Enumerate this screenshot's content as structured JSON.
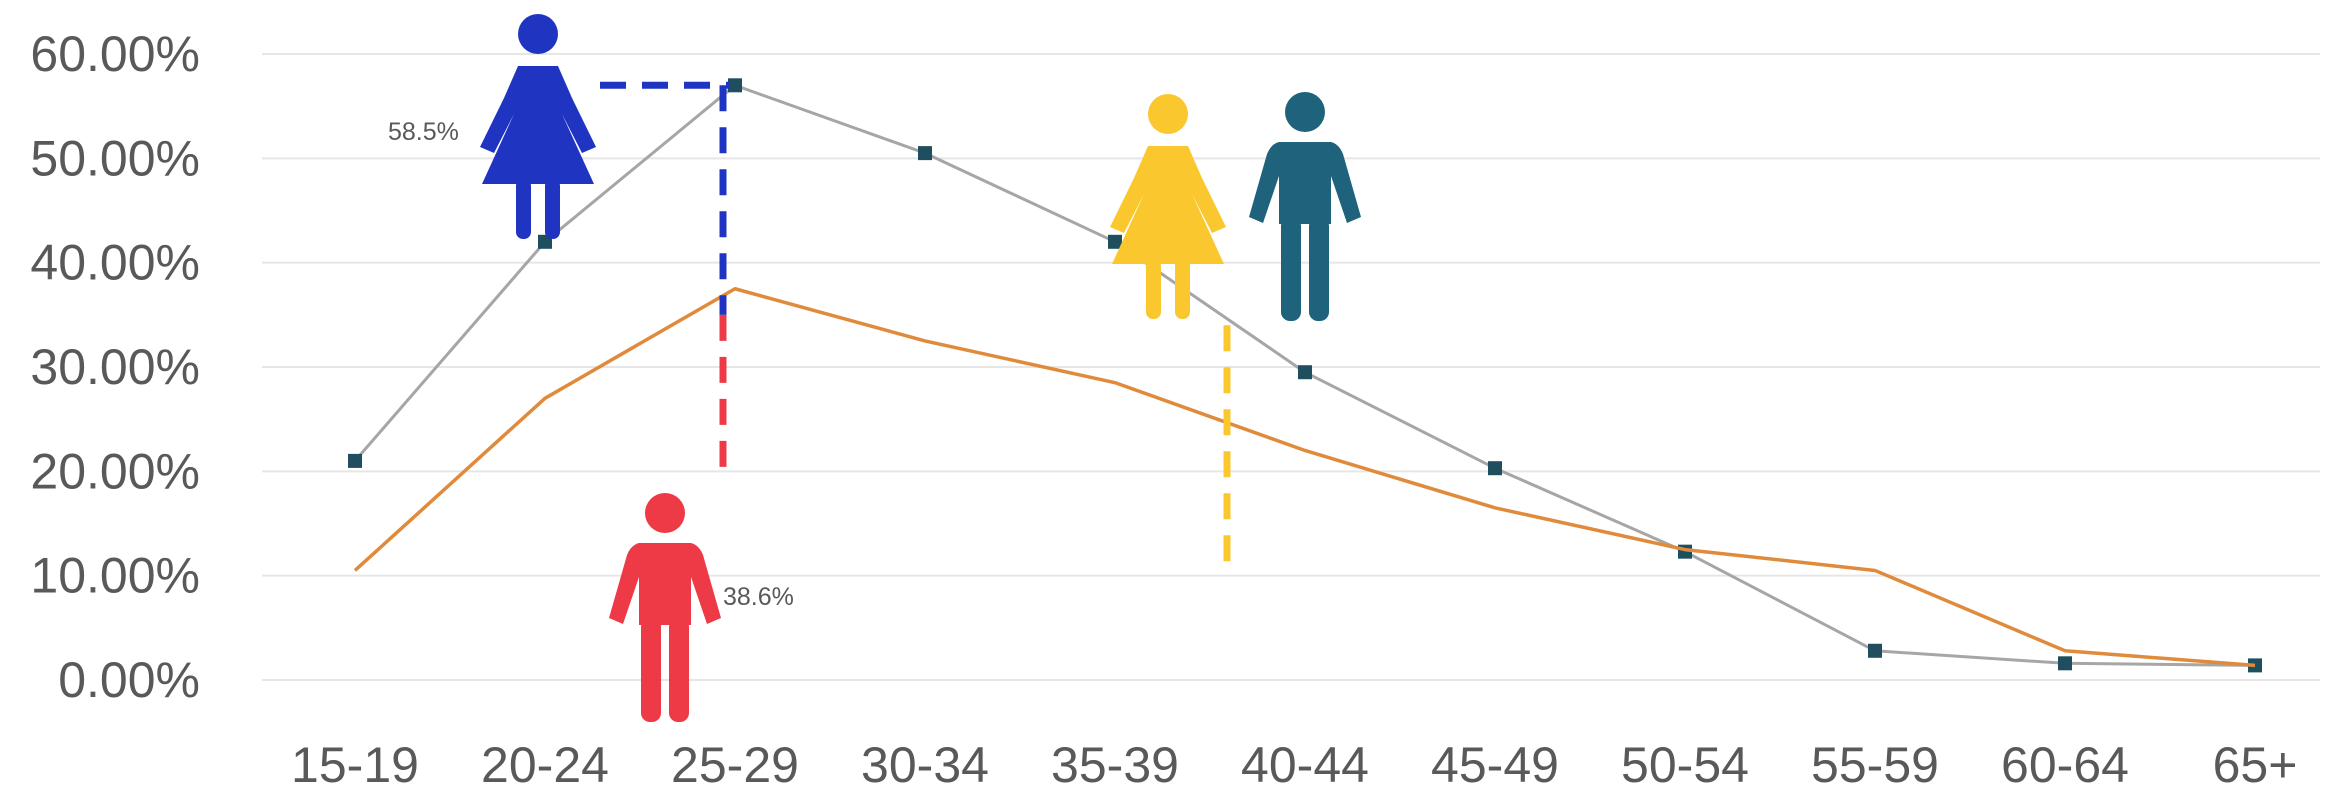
{
  "chart_data": {
    "type": "line",
    "title": "",
    "xlabel": "",
    "ylabel": "",
    "categories": [
      "15-19",
      "20-24",
      "25-29",
      "30-34",
      "35-39",
      "40-44",
      "45-49",
      "50-54",
      "55-59",
      "60-64",
      "65+"
    ],
    "ylim": [
      0,
      60
    ],
    "yticks": [
      0,
      10,
      20,
      30,
      40,
      50,
      60
    ],
    "ytick_labels": [
      "0.00%",
      "10.00%",
      "20.00%",
      "30.00%",
      "40.00%",
      "50.00%",
      "60.00%"
    ],
    "grid": true,
    "legend": "none",
    "series": [
      {
        "color": "#a6a6a6",
        "marker_color": "#1f4e5f",
        "marker": "square",
        "values": [
          21.0,
          42.0,
          57.0,
          50.5,
          42.0,
          29.5,
          20.3,
          12.3,
          2.8,
          1.6,
          1.4
        ]
      },
      {
        "color": "#e08a3c",
        "marker": "none",
        "values": [
          10.5,
          27.0,
          37.5,
          32.5,
          28.5,
          22.0,
          16.5,
          12.5,
          10.5,
          2.8,
          1.4
        ]
      }
    ],
    "annotations": [
      {
        "text": "58.5%",
        "near": "blue woman icon"
      },
      {
        "text": "38.6%",
        "near": "red man icon"
      }
    ],
    "icons": [
      {
        "name": "woman-icon",
        "color": "#1f35c2",
        "anchor_category": "20-24",
        "anchor_value": 58.5
      },
      {
        "name": "man-icon",
        "color": "#ee3a47",
        "anchor_category": "25-29",
        "anchor_value": 38.6
      },
      {
        "name": "woman-icon",
        "color": "#fac82e",
        "anchor_category": "35-39"
      },
      {
        "name": "man-icon",
        "color": "#1e637b",
        "anchor_category": "40-44"
      }
    ],
    "dashed_guides": [
      {
        "color": "#1f35c2",
        "category": "25-29",
        "from": 57,
        "to": 35
      },
      {
        "color": "#1f35c2",
        "horizontal_at": 57,
        "from_category": "20-24",
        "to_category": "25-29"
      },
      {
        "color": "#ee3a47",
        "category": "25-29",
        "from": 35,
        "to": 19
      },
      {
        "color": "#fac82e",
        "category": "40-44",
        "from": 34,
        "to": 10.5
      }
    ]
  }
}
